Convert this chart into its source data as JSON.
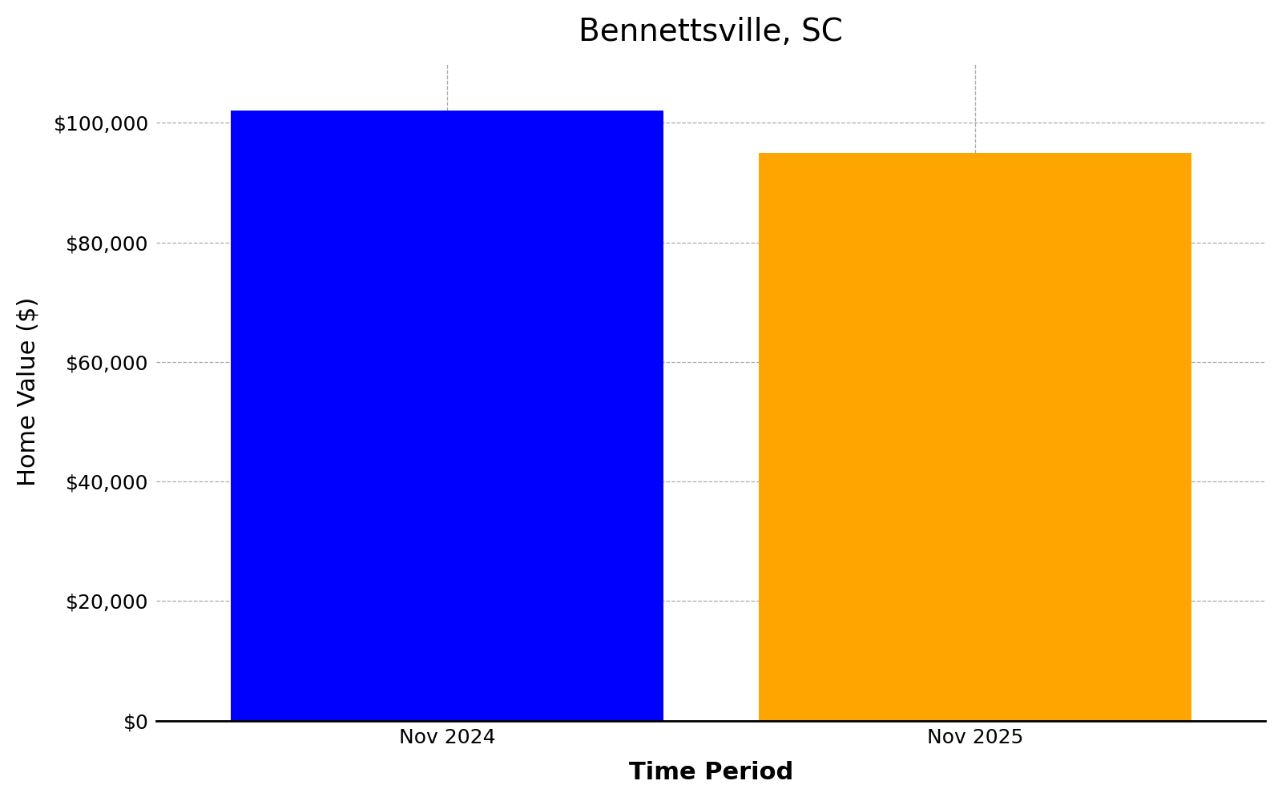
{
  "title": "Bennettsville, SC",
  "categories": [
    "Nov 2024",
    "Nov 2025"
  ],
  "values": [
    102000,
    95000
  ],
  "bar_colors": [
    "#0000ff",
    "#ffa500"
  ],
  "xlabel": "Time Period",
  "ylabel": "Home Value ($)",
  "ylim": [
    0,
    110000
  ],
  "yticks": [
    0,
    20000,
    40000,
    60000,
    80000,
    100000
  ],
  "title_fontsize": 28,
  "axis_label_fontsize": 22,
  "tick_fontsize": 18,
  "bar_width": 0.82,
  "grid_color": "#aaaaaa",
  "grid_style": "--",
  "background_color": "#ffffff"
}
